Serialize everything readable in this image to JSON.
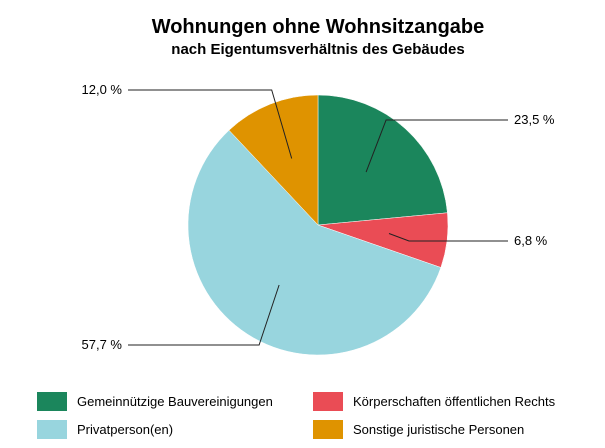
{
  "chart_data": {
    "type": "pie",
    "title": "Wohnungen ohne Wohnsitzangabe",
    "subtitle": "nach Eigentumsverhältnis des Gebäudes",
    "start_angle_deg": 0,
    "direction": "clockwise",
    "legend_position": "bottom",
    "categories": [
      "Gemeinnützige Bauvereinigungen",
      "Körperschaften öffentlichen Rechts",
      "Privatperson(en)",
      "Sonstige juristische Personen"
    ],
    "values": [
      23.5,
      6.8,
      57.7,
      12.0
    ],
    "value_labels": [
      "23,5 %",
      "6,8 %",
      "57,7 %",
      "12,0 %"
    ],
    "colors": [
      "#1b865c",
      "#ea4c55",
      "#98d5de",
      "#df9300"
    ]
  }
}
